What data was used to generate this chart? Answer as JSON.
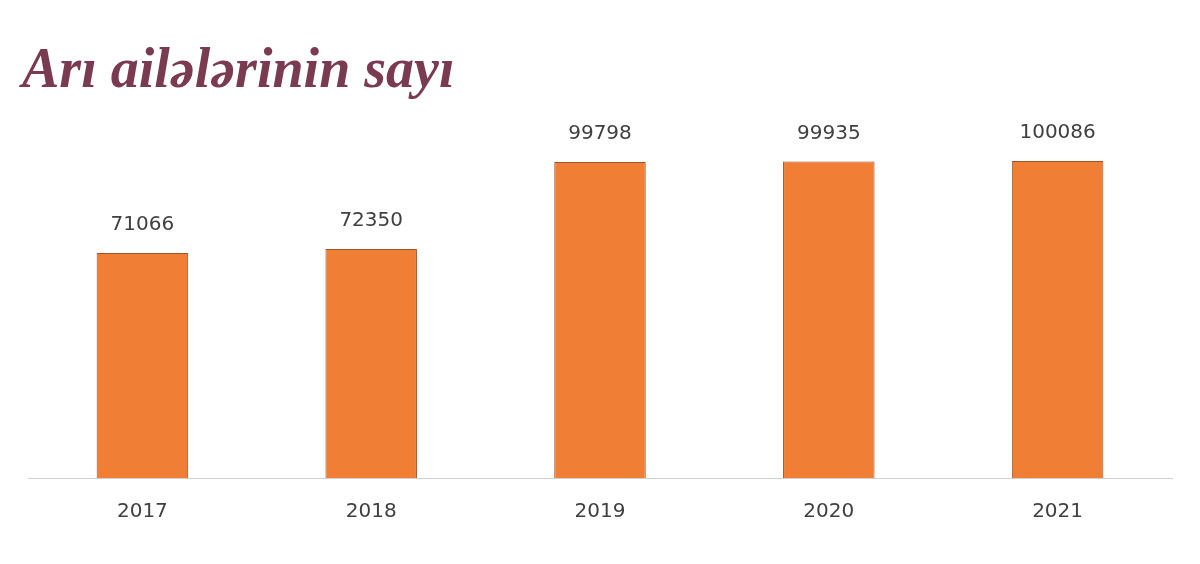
{
  "chart_data": {
    "type": "bar",
    "title": "Arı ailələrinin sayı",
    "categories": [
      "2017",
      "2018",
      "2019",
      "2020",
      "2021"
    ],
    "values": [
      71066,
      72350,
      99798,
      99935,
      100086
    ],
    "color": "#f07f35",
    "data_labels": true,
    "grid": false,
    "legend": false
  }
}
